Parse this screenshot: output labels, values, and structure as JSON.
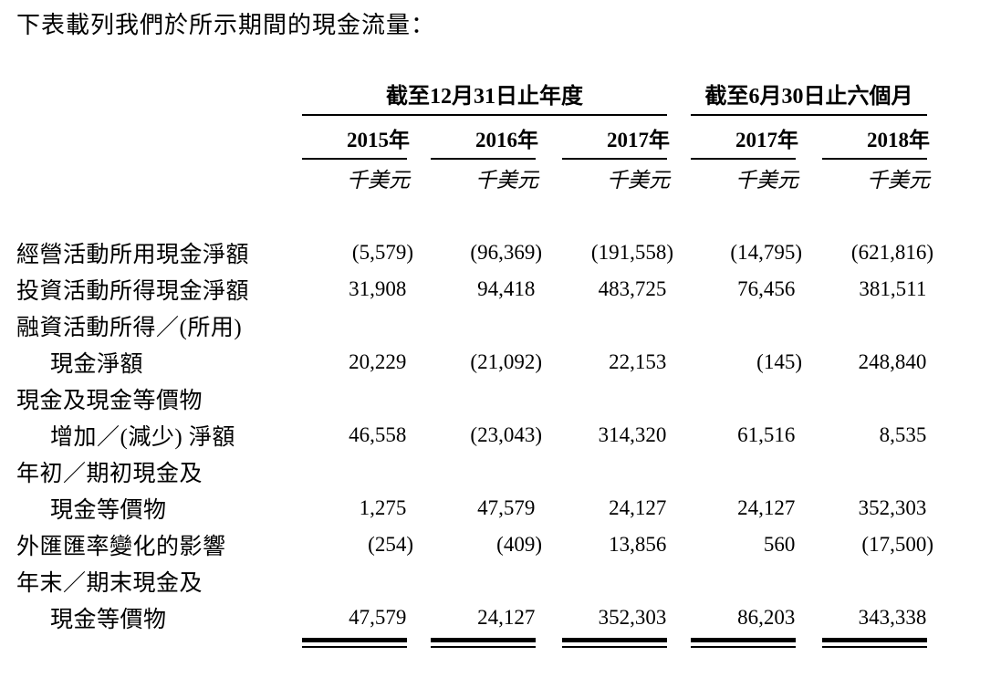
{
  "title": "下表載列我們於所示期間的現金流量：",
  "table": {
    "col_groups": [
      {
        "label": "截至12月31日止年度",
        "span": 3
      },
      {
        "label": "截至6月30日止六個月",
        "span": 2
      }
    ],
    "years": [
      "2015年",
      "2016年",
      "2017年",
      "2017年",
      "2018年"
    ],
    "units": [
      "千美元",
      "千美元",
      "千美元",
      "千美元",
      "千美元"
    ],
    "rows": [
      {
        "label": "經營活動所用現金淨額",
        "indent": false,
        "values": [
          "(5,579)",
          "(96,369)",
          "(191,558)",
          "(14,795)",
          "(621,816)"
        ]
      },
      {
        "label": "投資活動所得現金淨額",
        "indent": false,
        "values": [
          "31,908",
          "94,418",
          "483,725",
          "76,456",
          "381,511"
        ]
      },
      {
        "label": "融資活動所得／(所用)",
        "indent": false,
        "values": [
          "",
          "",
          "",
          "",
          ""
        ]
      },
      {
        "label": "現金淨額",
        "indent": true,
        "values": [
          "20,229",
          "(21,092)",
          "22,153",
          "(145)",
          "248,840"
        ]
      },
      {
        "label": "現金及現金等價物",
        "indent": false,
        "values": [
          "",
          "",
          "",
          "",
          ""
        ]
      },
      {
        "label": "增加／(減少) 淨額",
        "indent": true,
        "values": [
          "46,558",
          "(23,043)",
          "314,320",
          "61,516",
          "8,535"
        ]
      },
      {
        "label": "年初／期初現金及",
        "indent": false,
        "values": [
          "",
          "",
          "",
          "",
          ""
        ]
      },
      {
        "label": "現金等價物",
        "indent": true,
        "values": [
          "1,275",
          "47,579",
          "24,127",
          "24,127",
          "352,303"
        ]
      },
      {
        "label": "外匯匯率變化的影響",
        "indent": false,
        "values": [
          "(254)",
          "(409)",
          "13,856",
          "560",
          "(17,500)"
        ]
      },
      {
        "label": "年末／期末現金及",
        "indent": false,
        "values": [
          "",
          "",
          "",
          "",
          ""
        ]
      },
      {
        "label": "現金等價物",
        "indent": true,
        "values": [
          "47,579",
          "24,127",
          "352,303",
          "86,203",
          "343,338"
        ]
      }
    ],
    "text_color": "#000000",
    "background_color": "#ffffff"
  }
}
